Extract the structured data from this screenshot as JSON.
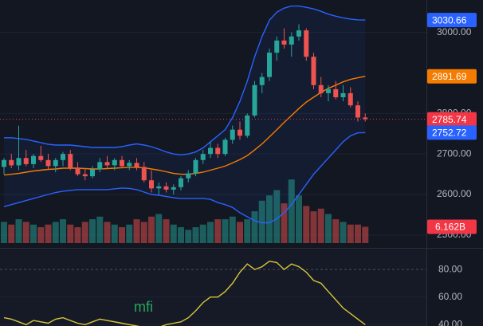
{
  "chart_data": {
    "type": "candlestick",
    "up_color": "#26a69a",
    "down_color": "#ef5350",
    "open": [
      2668,
      2685,
      2672,
      2690,
      2675,
      2695,
      2685,
      2670,
      2685,
      2700,
      2665,
      2650,
      2645,
      2662,
      2680,
      2672,
      2685,
      2670,
      2678,
      2668,
      2635,
      2615,
      2620,
      2612,
      2618,
      2640,
      2652,
      2685,
      2700,
      2715,
      2700,
      2735,
      2760,
      2745,
      2795,
      2870,
      2890,
      2950,
      2980,
      2970,
      2990,
      3005,
      2940,
      2870,
      2850,
      2860,
      2840,
      2850,
      2820,
      2790
    ],
    "high": [
      2690,
      2700,
      2770,
      2710,
      2700,
      2720,
      2700,
      2690,
      2705,
      2710,
      2680,
      2665,
      2670,
      2690,
      2695,
      2690,
      2695,
      2685,
      2690,
      2680,
      2660,
      2630,
      2630,
      2625,
      2645,
      2660,
      2690,
      2710,
      2730,
      2725,
      2740,
      2770,
      2780,
      2800,
      2880,
      2900,
      2960,
      2990,
      3010,
      3000,
      3020,
      3010,
      2950,
      2890,
      2870,
      2880,
      2870,
      2865,
      2830,
      2800
    ],
    "low": [
      2650,
      2665,
      2660,
      2670,
      2665,
      2680,
      2660,
      2655,
      2670,
      2660,
      2645,
      2635,
      2640,
      2655,
      2665,
      2660,
      2665,
      2660,
      2660,
      2630,
      2605,
      2600,
      2605,
      2600,
      2610,
      2630,
      2645,
      2675,
      2690,
      2690,
      2695,
      2725,
      2735,
      2740,
      2790,
      2850,
      2880,
      2930,
      2960,
      2940,
      2980,
      2930,
      2860,
      2840,
      2830,
      2835,
      2830,
      2815,
      2780,
      2780
    ],
    "close": [
      2685,
      2672,
      2690,
      2675,
      2695,
      2685,
      2670,
      2685,
      2700,
      2665,
      2650,
      2645,
      2662,
      2680,
      2672,
      2685,
      2670,
      2678,
      2668,
      2635,
      2615,
      2620,
      2612,
      2618,
      2640,
      2652,
      2685,
      2700,
      2715,
      2700,
      2735,
      2760,
      2745,
      2795,
      2870,
      2890,
      2950,
      2980,
      2970,
      2990,
      3005,
      2940,
      2870,
      2850,
      2860,
      2840,
      2850,
      2820,
      2790,
      2786
    ],
    "volume": [
      8,
      7,
      9,
      8,
      7,
      6,
      7,
      8,
      9,
      7,
      6,
      8,
      9,
      10,
      8,
      7,
      6,
      7,
      9,
      8,
      10,
      11,
      9,
      7,
      6,
      5,
      6,
      7,
      8,
      9,
      9,
      10,
      8,
      9,
      12,
      16,
      18,
      20,
      15,
      24,
      18,
      14,
      12,
      13,
      11,
      9,
      8,
      7,
      7,
      6.162
    ],
    "upper": [
      2740,
      2740,
      2738,
      2736,
      2732,
      2728,
      2724,
      2722,
      2722,
      2722,
      2720,
      2718,
      2716,
      2716,
      2716,
      2716,
      2718,
      2722,
      2725,
      2722,
      2718,
      2712,
      2705,
      2700,
      2698,
      2700,
      2705,
      2715,
      2730,
      2745,
      2760,
      2790,
      2830,
      2880,
      2940,
      2990,
      3030,
      3050,
      3060,
      3065,
      3065,
      3062,
      3058,
      3052,
      3045,
      3040,
      3036,
      3033,
      3031,
      3030.66
    ],
    "middle": [
      2648,
      2650,
      2652,
      2655,
      2658,
      2660,
      2662,
      2663,
      2665,
      2665,
      2665,
      2664,
      2663,
      2663,
      2664,
      2665,
      2666,
      2667,
      2667,
      2666,
      2663,
      2660,
      2656,
      2652,
      2650,
      2650,
      2652,
      2655,
      2660,
      2665,
      2670,
      2678,
      2686,
      2696,
      2710,
      2725,
      2742,
      2760,
      2778,
      2795,
      2812,
      2828,
      2840,
      2852,
      2862,
      2870,
      2878,
      2884,
      2888,
      2891.69
    ],
    "lower": [
      2570,
      2575,
      2580,
      2585,
      2590,
      2595,
      2600,
      2605,
      2608,
      2610,
      2612,
      2612,
      2612,
      2612,
      2612,
      2614,
      2616,
      2615,
      2612,
      2606,
      2600,
      2598,
      2595,
      2592,
      2590,
      2590,
      2590,
      2590,
      2588,
      2580,
      2575,
      2568,
      2555,
      2545,
      2535,
      2530,
      2530,
      2540,
      2555,
      2575,
      2600,
      2625,
      2650,
      2670,
      2690,
      2710,
      2730,
      2745,
      2752,
      2752.72
    ],
    "band_color": "#2962ff",
    "middle_color": "#f57c00",
    "ylim": [
      2480,
      3080
    ],
    "yticks": [
      {
        "value": 2500,
        "label": "2500.00"
      },
      {
        "value": 2600,
        "label": "2600.00"
      },
      {
        "value": 2700,
        "label": "2700.00"
      },
      {
        "value": 2800,
        "label": "2800.00"
      },
      {
        "value": 3000,
        "label": "3000.00"
      }
    ],
    "volume_lim": [
      0,
      40
    ],
    "badges": [
      {
        "value": 3030.66,
        "label": "3030.66",
        "color": "#2962ff"
      },
      {
        "value": 2891.69,
        "label": "2891.69",
        "color": "#f57c00"
      },
      {
        "value": 2785.74,
        "label": "2785.74",
        "color": "#f23645"
      },
      {
        "value": 2752.72,
        "label": "2752.72",
        "color": "#2962ff"
      }
    ],
    "volume_badge": {
      "value": 6.162,
      "label": "6.162B",
      "color": "#f23645"
    },
    "indicator": {
      "name": "mfi",
      "color": "#d8c63a",
      "values": [
        45,
        44,
        42,
        40,
        43,
        42,
        41,
        44,
        45,
        43,
        41,
        40,
        42,
        44,
        43,
        42,
        41,
        40,
        39,
        38,
        37,
        38,
        40,
        41,
        42,
        45,
        50,
        56,
        60,
        60,
        64,
        70,
        78,
        84,
        80,
        82,
        86,
        85,
        80,
        84,
        82,
        78,
        72,
        70,
        64,
        58,
        52,
        48,
        44,
        40
      ],
      "ylim": [
        39,
        94.5
      ],
      "yticks": [
        {
          "value": 40,
          "label": "40.00"
        },
        {
          "value": 60,
          "label": "60.00"
        },
        {
          "value": 80,
          "label": "80.00"
        }
      ]
    }
  }
}
